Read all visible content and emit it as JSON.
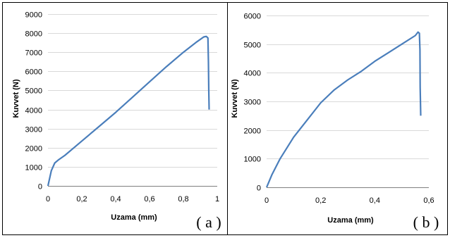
{
  "chart_data": [
    {
      "type": "line",
      "panel_label": "( a )",
      "xlabel": "Uzama (mm)",
      "ylabel": "Kuvvet (N)",
      "xlim": [
        0,
        1
      ],
      "ylim": [
        0,
        9000
      ],
      "xticks": [
        0,
        0.2,
        0.4,
        0.6,
        0.8,
        1
      ],
      "xtick_labels": [
        "0",
        "0,2",
        "0,4",
        "0,6",
        "0,8",
        "1"
      ],
      "yticks": [
        0,
        1000,
        2000,
        3000,
        4000,
        5000,
        6000,
        7000,
        8000,
        9000
      ],
      "ytick_labels": [
        "0",
        "1000",
        "2000",
        "3000",
        "4000",
        "5000",
        "6000",
        "7000",
        "8000",
        "9000"
      ],
      "grid": true,
      "line_color": "#4a7ebb",
      "series": [
        {
          "x": [
            0,
            0.02,
            0.04,
            0.06,
            0.1,
            0.2,
            0.3,
            0.4,
            0.5,
            0.6,
            0.7,
            0.8,
            0.88,
            0.92,
            0.935,
            0.945,
            0.948,
            0.95,
            0.952
          ],
          "y": [
            0,
            800,
            1200,
            1350,
            1600,
            2350,
            3100,
            3850,
            4650,
            5450,
            6250,
            7000,
            7550,
            7800,
            7830,
            7750,
            6500,
            5000,
            4000
          ]
        }
      ]
    },
    {
      "type": "line",
      "panel_label": "( b )",
      "xlabel": "Uzama (mm)",
      "ylabel": "Kuvvet (N)",
      "xlim": [
        0,
        0.6
      ],
      "ylim": [
        0,
        6000
      ],
      "xticks": [
        0,
        0.2,
        0.4,
        0.6
      ],
      "xtick_labels": [
        "0",
        "0,2",
        "0,4",
        "0,6"
      ],
      "yticks": [
        0,
        1000,
        2000,
        3000,
        4000,
        5000,
        6000
      ],
      "ytick_labels": [
        "0",
        "1000",
        "2000",
        "3000",
        "4000",
        "5000",
        "6000"
      ],
      "grid": true,
      "line_color": "#4a7ebb",
      "series": [
        {
          "x": [
            0,
            0.02,
            0.05,
            0.1,
            0.15,
            0.2,
            0.25,
            0.3,
            0.35,
            0.4,
            0.45,
            0.5,
            0.55,
            0.56,
            0.565,
            0.567,
            0.568,
            0.57
          ],
          "y": [
            0,
            450,
            1000,
            1750,
            2350,
            2950,
            3400,
            3750,
            4050,
            4400,
            4700,
            5000,
            5300,
            5420,
            5380,
            4800,
            3500,
            2500
          ]
        }
      ]
    }
  ]
}
